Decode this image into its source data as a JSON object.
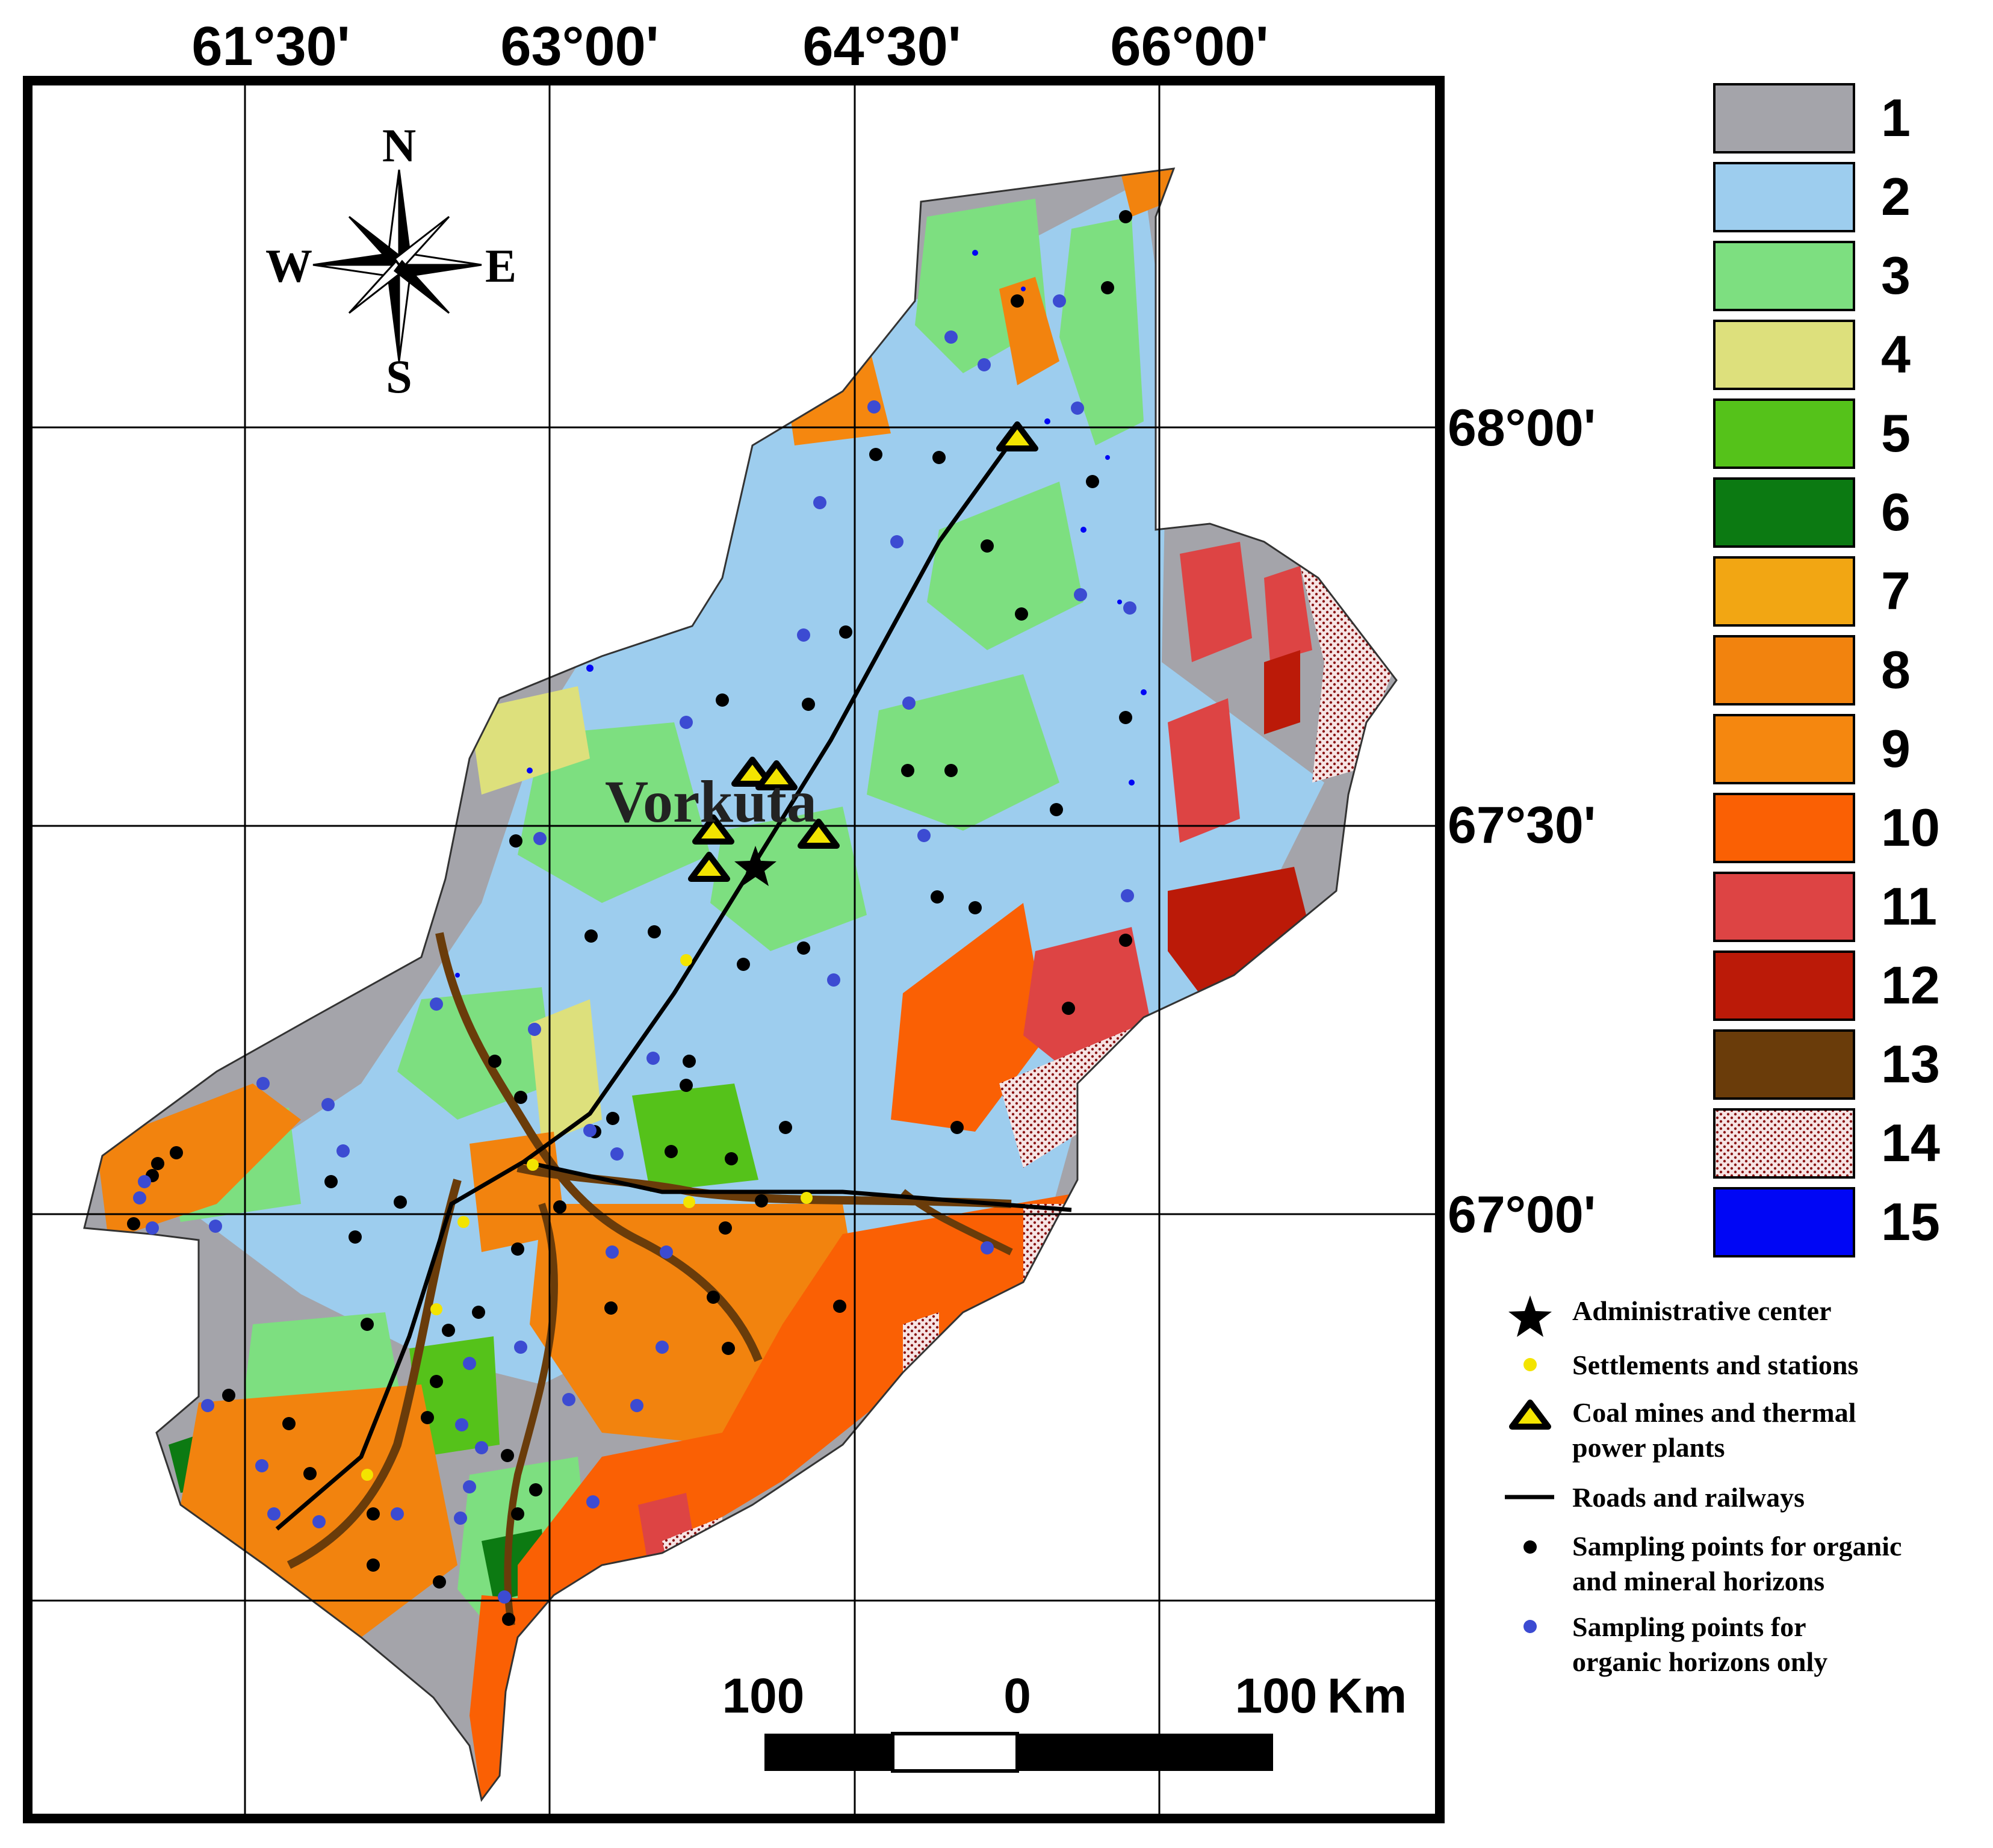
{
  "map": {
    "city_label": "Vorkuta",
    "longitude_labels": [
      "61°30'",
      "63°00'",
      "64°30'",
      "66°00'"
    ],
    "latitude_labels": [
      "68°00'",
      "67°30'",
      "67°00'"
    ],
    "compass": {
      "n": "N",
      "e": "E",
      "s": "S",
      "w": "W"
    }
  },
  "legend": {
    "classes": [
      {
        "number": "1",
        "color": "#a4a4aa"
      },
      {
        "number": "2",
        "color": "#9dcdee"
      },
      {
        "number": "3",
        "color": "#7ddf80"
      },
      {
        "number": "4",
        "color": "#dde07c"
      },
      {
        "number": "5",
        "color": "#55c21a"
      },
      {
        "number": "6",
        "color": "#0c7a12"
      },
      {
        "number": "7",
        "color": "#f2a613"
      },
      {
        "number": "8",
        "color": "#f2830e"
      },
      {
        "number": "9",
        "color": "#f5870f"
      },
      {
        "number": "10",
        "color": "#fa6004"
      },
      {
        "number": "11",
        "color": "#dd4444"
      },
      {
        "number": "12",
        "color": "#bb1a08"
      },
      {
        "number": "13",
        "color": "#6a3c0a"
      },
      {
        "number": "14",
        "color": "#f4dcdc"
      },
      {
        "number": "15",
        "color": "#0006f5"
      }
    ],
    "symbols": [
      {
        "label": "Administrative center"
      },
      {
        "label": "Settlements and stations"
      },
      {
        "label_line1": "Coal mines and thermal",
        "label_line2": "power plants"
      },
      {
        "label": "Roads and railways"
      },
      {
        "label_line1": "Sampling points for organic",
        "label_line2": "and mineral horizons"
      },
      {
        "label_line1": "Sampling points for",
        "label_line2": "organic horizons only"
      }
    ]
  },
  "scale_bar": {
    "left": "100",
    "middle": "0",
    "right": "100",
    "unit": "Km"
  }
}
